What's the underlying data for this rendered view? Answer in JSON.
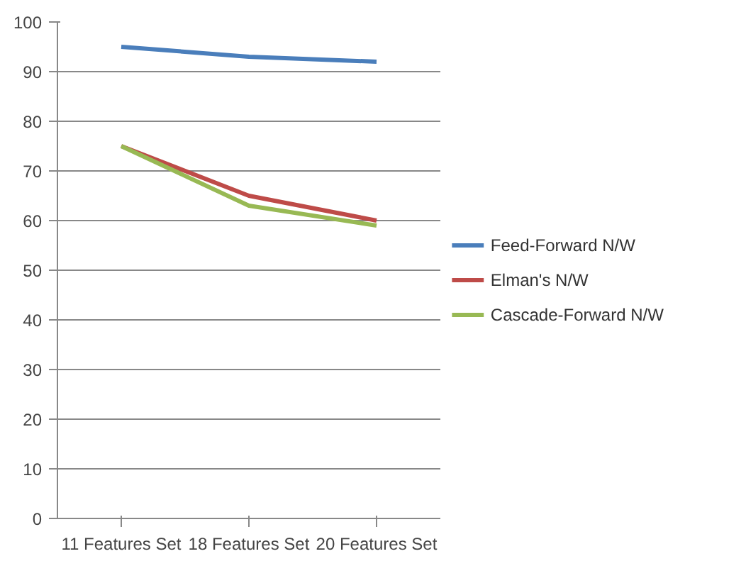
{
  "chart_data": {
    "type": "line",
    "categories": [
      "11 Features Set",
      "18 Features Set",
      "20 Features Set"
    ],
    "series": [
      {
        "name": "Feed-Forward N/W",
        "color": "#4a7ebb",
        "values": [
          95,
          93,
          92
        ]
      },
      {
        "name": "Elman's N/W",
        "color": "#be4b48",
        "values": [
          75,
          65,
          60
        ]
      },
      {
        "name": "Cascade-Forward N/W",
        "color": "#98b954",
        "values": [
          75,
          63,
          59
        ]
      }
    ],
    "ylim": [
      0,
      100
    ],
    "yticks": [
      0,
      10,
      20,
      30,
      40,
      50,
      60,
      70,
      80,
      90,
      100
    ],
    "grid": "y",
    "legend": "right",
    "marker": "none",
    "line_style": "solid"
  }
}
